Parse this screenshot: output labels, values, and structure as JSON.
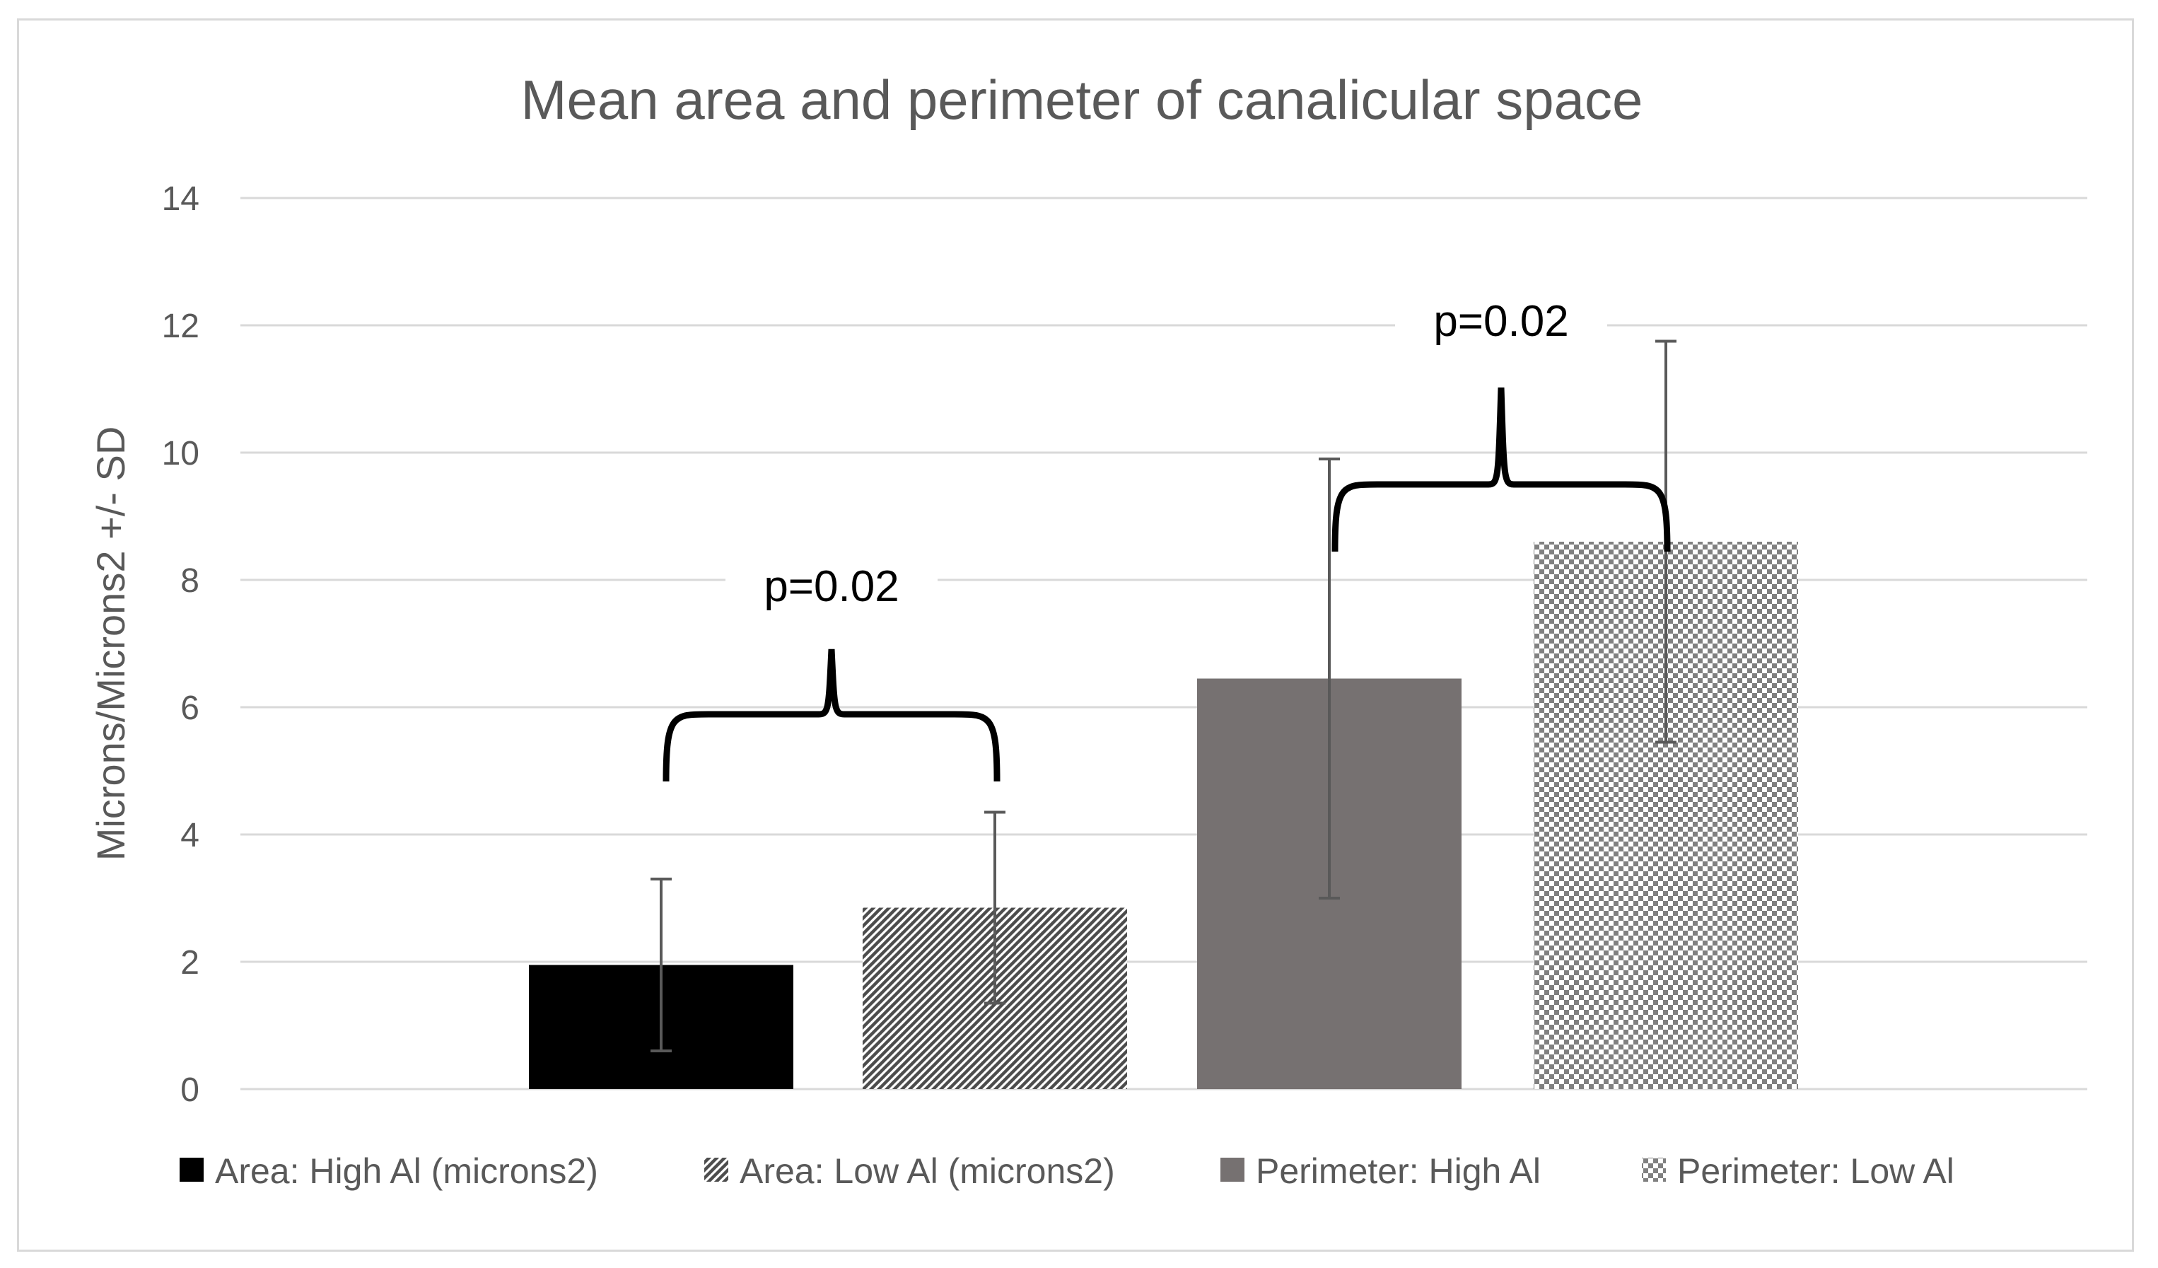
{
  "chart_data": {
    "type": "bar",
    "title": "Mean area and perimeter of canalicular space",
    "ylabel": "Microns/Microns2 +/- SD",
    "xlabel": "",
    "ylim": [
      0,
      14
    ],
    "yticks": [
      0,
      2,
      4,
      6,
      8,
      10,
      12,
      14
    ],
    "grid": true,
    "legend_position": "bottom",
    "series": [
      {
        "name": "Area: High Al (microns2)",
        "value": 1.95,
        "error": 1.35,
        "fill": "solid",
        "color": "#000000"
      },
      {
        "name": "Area: Low Al (microns2)",
        "value": 2.85,
        "error": 1.5,
        "fill": "diagonal-hatch",
        "color": "#595959"
      },
      {
        "name": "Perimeter: High Al",
        "value": 6.45,
        "error": 3.45,
        "fill": "solid",
        "color": "#767171"
      },
      {
        "name": "Perimeter: Low Al",
        "value": 8.6,
        "error": 3.15,
        "fill": "checkerboard",
        "color": "#7f7f7f"
      }
    ],
    "annotations": [
      {
        "text": "p=0.02",
        "between": [
          "Area: High Al (microns2)",
          "Area: Low Al (microns2)"
        ]
      },
      {
        "text": "p=0.02",
        "between": [
          "Perimeter: High Al",
          "Perimeter: Low Al"
        ]
      }
    ]
  }
}
